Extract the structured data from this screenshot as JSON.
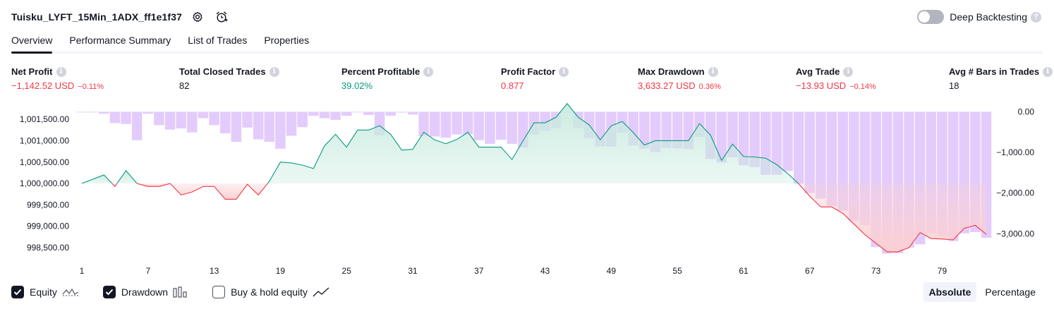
{
  "header": {
    "strategy_name": "Tuisku_LYFT_15Min_1ADX_ff1e1f37",
    "settings_icon": "gear-icon",
    "alert_icon": "alarm-clock-add-icon",
    "deep_backtesting_label": "Deep Backtesting",
    "deep_backtesting_enabled": false,
    "help_glyph": "?"
  },
  "tabs": [
    {
      "label": "Overview",
      "active": true
    },
    {
      "label": "Performance Summary",
      "active": false
    },
    {
      "label": "List of Trades",
      "active": false
    },
    {
      "label": "Properties",
      "active": false
    }
  ],
  "metrics": {
    "net_profit": {
      "label": "Net Profit",
      "value": "−1,142.52 USD",
      "sub": "−0.11%"
    },
    "total_closed_trades": {
      "label": "Total Closed Trades",
      "value": "82"
    },
    "percent_profitable": {
      "label": "Percent Profitable",
      "value": "39.02%"
    },
    "profit_factor": {
      "label": "Profit Factor",
      "value": "0.877"
    },
    "max_drawdown": {
      "label": "Max Drawdown",
      "value": "3,633.27 USD",
      "sub": "0.36%"
    },
    "avg_trade": {
      "label": "Avg Trade",
      "value": "−13.93 USD",
      "sub": "−0.14%"
    },
    "avg_bars_in_trades": {
      "label": "Avg # Bars in Trades",
      "value": "18"
    }
  },
  "info_glyph": "i",
  "colors": {
    "profit": "#089981",
    "loss": "#f23645",
    "drawdown_bar": "#e0c7fb",
    "equity_fill_up": "#c9ebdf",
    "equity_fill_down": "#fbd0d3",
    "equity_line_up": "#089981",
    "equity_line_down": "#f23645"
  },
  "legend": {
    "equity": {
      "label": "Equity",
      "checked": true,
      "icon": "equity-line-icon"
    },
    "drawdown": {
      "label": "Drawdown",
      "checked": true,
      "icon": "drawdown-bars-icon"
    },
    "buy_hold": {
      "label": "Buy & hold equity",
      "checked": false,
      "icon": "buy-hold-line-icon"
    }
  },
  "mode": {
    "absolute": "Absolute",
    "percentage": "Percentage",
    "selected": "absolute"
  },
  "chart_data": {
    "type": "line",
    "x_ticks": [
      "1",
      "7",
      "13",
      "19",
      "25",
      "31",
      "37",
      "43",
      "49",
      "55",
      "61",
      "67",
      "73",
      "79"
    ],
    "left_axis": {
      "ticks": [
        "1,001,500.00",
        "1,001,000.00",
        "1,000,500.00",
        "1,000,000.00",
        "999,500.00",
        "999,000.00",
        "998,500.00"
      ],
      "tick_values": [
        1001500,
        1001000,
        1000500,
        1000000,
        999500,
        999000,
        998500
      ],
      "ylim": [
        998300,
        1001850
      ]
    },
    "right_axis": {
      "ticks": [
        "0.00",
        "−1,000.00",
        "−2,000.00",
        "−3,000.00"
      ],
      "tick_values": [
        0,
        -1000,
        -2000,
        -3000
      ],
      "ylim": [
        -3550,
        180
      ]
    },
    "baseline": 1000000,
    "series": [
      {
        "name": "Equity",
        "x": [
          1,
          2,
          3,
          4,
          5,
          6,
          7,
          8,
          9,
          10,
          11,
          12,
          13,
          14,
          15,
          16,
          17,
          18,
          19,
          20,
          21,
          22,
          23,
          24,
          25,
          26,
          27,
          28,
          29,
          30,
          31,
          32,
          33,
          34,
          35,
          36,
          37,
          38,
          39,
          40,
          41,
          42,
          43,
          44,
          45,
          46,
          47,
          48,
          49,
          50,
          51,
          52,
          53,
          54,
          55,
          56,
          57,
          58,
          59,
          60,
          61,
          62,
          63,
          64,
          65,
          66,
          67,
          68,
          69,
          70,
          71,
          72,
          73,
          74,
          75,
          76,
          77,
          78,
          79,
          80,
          81,
          82,
          83
        ],
        "values": [
          1000000,
          1000100,
          1000200,
          999930,
          1000300,
          1000000,
          999930,
          999930,
          1000000,
          999730,
          999800,
          999930,
          999930,
          999630,
          999630,
          999980,
          999730,
          1000050,
          1000500,
          1000480,
          1000430,
          1000350,
          1000880,
          1001150,
          1000850,
          1001250,
          1001250,
          1001350,
          1001150,
          1000780,
          1000800,
          1001200,
          1001020,
          1000930,
          1001030,
          1001200,
          1000850,
          1000850,
          1000850,
          1000560,
          1001000,
          1001420,
          1001420,
          1001550,
          1001870,
          1001550,
          1001370,
          1001020,
          1001350,
          1001450,
          1001190,
          1000900,
          1001000,
          1001000,
          1001000,
          1001000,
          1001400,
          1001130,
          1000540,
          1000920,
          1000630,
          1000620,
          1000590,
          1000440,
          1000230,
          999990,
          999700,
          999450,
          999450,
          999300,
          999050,
          998800,
          998600,
          998400,
          998400,
          998500,
          998850,
          998710,
          998700,
          998680,
          998950,
          999020,
          998810
        ]
      },
      {
        "name": "Drawdown",
        "x": [
          1,
          2,
          3,
          4,
          5,
          6,
          7,
          8,
          9,
          10,
          11,
          12,
          13,
          14,
          15,
          16,
          17,
          18,
          19,
          20,
          21,
          22,
          23,
          24,
          25,
          26,
          27,
          28,
          29,
          30,
          31,
          32,
          33,
          34,
          35,
          36,
          37,
          38,
          39,
          40,
          41,
          42,
          43,
          44,
          45,
          46,
          47,
          48,
          49,
          50,
          51,
          52,
          53,
          54,
          55,
          56,
          57,
          58,
          59,
          60,
          61,
          62,
          63,
          64,
          65,
          66,
          67,
          68,
          69,
          70,
          71,
          72,
          73,
          74,
          75,
          76,
          77,
          78,
          79,
          80,
          81,
          82,
          83
        ],
        "values": [
          0,
          -10,
          -50,
          -280,
          -300,
          -700,
          -50,
          -330,
          -440,
          -410,
          -510,
          -160,
          -330,
          -530,
          -740,
          -390,
          -680,
          -740,
          -910,
          -590,
          -380,
          -100,
          -160,
          -200,
          -100,
          0,
          -80,
          -580,
          -100,
          -20,
          -70,
          -600,
          -610,
          -640,
          -560,
          -560,
          -700,
          -790,
          -690,
          -790,
          -880,
          -560,
          -470,
          -400,
          0,
          -400,
          -650,
          -850,
          -860,
          -520,
          -830,
          -910,
          -990,
          -890,
          -900,
          -920,
          -620,
          -1160,
          -1250,
          -1120,
          -1320,
          -1360,
          -1550,
          -1550,
          -1460,
          -1770,
          -2000,
          -2140,
          -2320,
          -2430,
          -2680,
          -2790,
          -3330,
          -3490,
          -3480,
          -3340,
          -3260,
          -2990,
          -3060,
          -3180,
          -2990,
          -2960,
          -3100
        ]
      }
    ],
    "legend": [
      "Equity",
      "Drawdown",
      "Buy & hold equity"
    ],
    "grid": false
  }
}
